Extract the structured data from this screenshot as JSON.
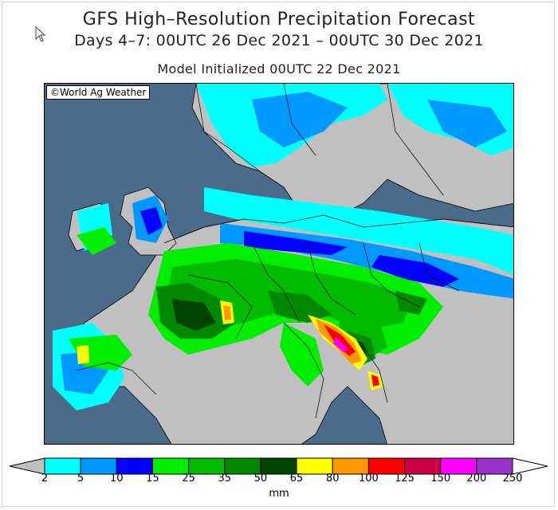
{
  "header": {
    "title": "GFS High–Resolution Precipitation Forecast",
    "subtitle": "Days 4–7: 00UTC 26 Dec 2021 – 00UTC 30 Dec 2021",
    "model_run": "Model Initialized 00UTC 22 Dec 2021"
  },
  "map": {
    "credit": "©World Ag Weather",
    "ocean_color": "#4a6b8a",
    "land_no_precip_color": "#c0c0c0",
    "border_color": "#000000"
  },
  "legend": {
    "unit": "mm",
    "labels": [
      "2",
      "5",
      "10",
      "15",
      "25",
      "35",
      "50",
      "65",
      "80",
      "100",
      "125",
      "150",
      "200",
      "250"
    ],
    "colors": [
      "#00ffff",
      "#0099ff",
      "#0000ff",
      "#00ee00",
      "#00bb00",
      "#008800",
      "#004400",
      "#ffff00",
      "#ff9900",
      "#ff0000",
      "#cc0044",
      "#ff00ff",
      "#9933cc"
    ],
    "low_arrow_color": "#c0c0c0",
    "high_arrow_color": "#ffffff"
  }
}
